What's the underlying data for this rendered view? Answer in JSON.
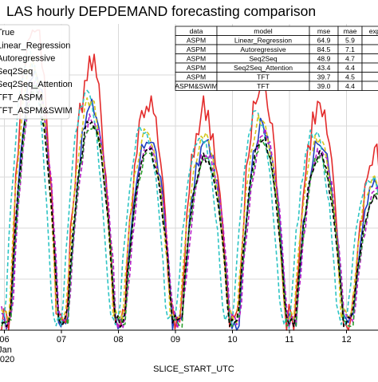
{
  "chart_data": {
    "type": "line",
    "title": "LAS hourly DEPDEMAND forecasting comparison",
    "xlabel": "SLICE_START_UTC",
    "ylabel": "",
    "x_ticks": [
      "06",
      "07",
      "08",
      "09",
      "10",
      "11",
      "12"
    ],
    "x_tick_extra": [
      "Jan",
      "2020"
    ],
    "y_gridlines": 5,
    "grid": true,
    "legend": {
      "placement": "top-left",
      "entries": [
        "True",
        "Linear_Regression",
        "Autoregressive",
        "Seq2Seq",
        "Seq2Seq_Attention",
        "TFT_ASPM",
        "TFT_ASPM&SWIM"
      ]
    },
    "series": [
      {
        "name": "True",
        "color": "#1f3fbf",
        "style": "solid",
        "width": 1.6,
        "peak_scale": 1.0,
        "phase": 0.0,
        "shift": 0.0,
        "jitter": 0.06
      },
      {
        "name": "Linear_Regression",
        "color": "#e32b2b",
        "style": "solid",
        "width": 1.6,
        "peak_scale": 1.2,
        "phase": 0.02,
        "shift": 0.0,
        "jitter": 0.12
      },
      {
        "name": "Autoregressive",
        "color": "#2ec4c4",
        "style": "dashed",
        "width": 1.6,
        "peak_scale": 1.06,
        "phase": 0.1,
        "shift": 0.0,
        "jitter": 0.05
      },
      {
        "name": "Seq2Seq",
        "color": "#b71cc8",
        "style": "dashed",
        "width": 1.6,
        "peak_scale": 0.95,
        "phase": -0.02,
        "shift": 0.0,
        "jitter": 0.05
      },
      {
        "name": "Seq2Seq_Attention",
        "color": "#d4c61e",
        "style": "dashed",
        "width": 1.6,
        "peak_scale": 1.0,
        "phase": 0.03,
        "shift": 0.02,
        "jitter": 0.05
      },
      {
        "name": "TFT_ASPM",
        "color": "#2ca02c",
        "style": "dashed",
        "width": 1.6,
        "peak_scale": 0.92,
        "phase": 0.0,
        "shift": 0.0,
        "jitter": 0.04
      },
      {
        "name": "TFT_ASPM&SWIM",
        "color": "#000000",
        "style": "dashed",
        "width": 1.6,
        "peak_scale": 0.93,
        "phase": 0.01,
        "shift": 0.0,
        "jitter": 0.04
      }
    ],
    "daily_peaks": [
      0.62,
      0.82,
      0.7,
      0.6,
      0.58,
      0.64,
      0.58,
      0.45
    ],
    "table": {
      "columns": [
        "data",
        "model",
        "mse",
        "mae",
        "explai"
      ],
      "rows": [
        [
          "ASPM",
          "Linear_Regression",
          "64.9",
          "5.9",
          ""
        ],
        [
          "ASPM",
          "Autoregressive",
          "84.5",
          "7.1",
          ""
        ],
        [
          "ASPM",
          "Seq2Seq",
          "48.9",
          "4.7",
          ""
        ],
        [
          "ASPM",
          "Seq2Seq_Attention",
          "43.4",
          "4.4",
          ""
        ],
        [
          "ASPM",
          "TFT",
          "39.7",
          "4.5",
          ""
        ],
        [
          "ASPM&SWIM",
          "TFT",
          "39.0",
          "4.4",
          ""
        ]
      ]
    }
  }
}
